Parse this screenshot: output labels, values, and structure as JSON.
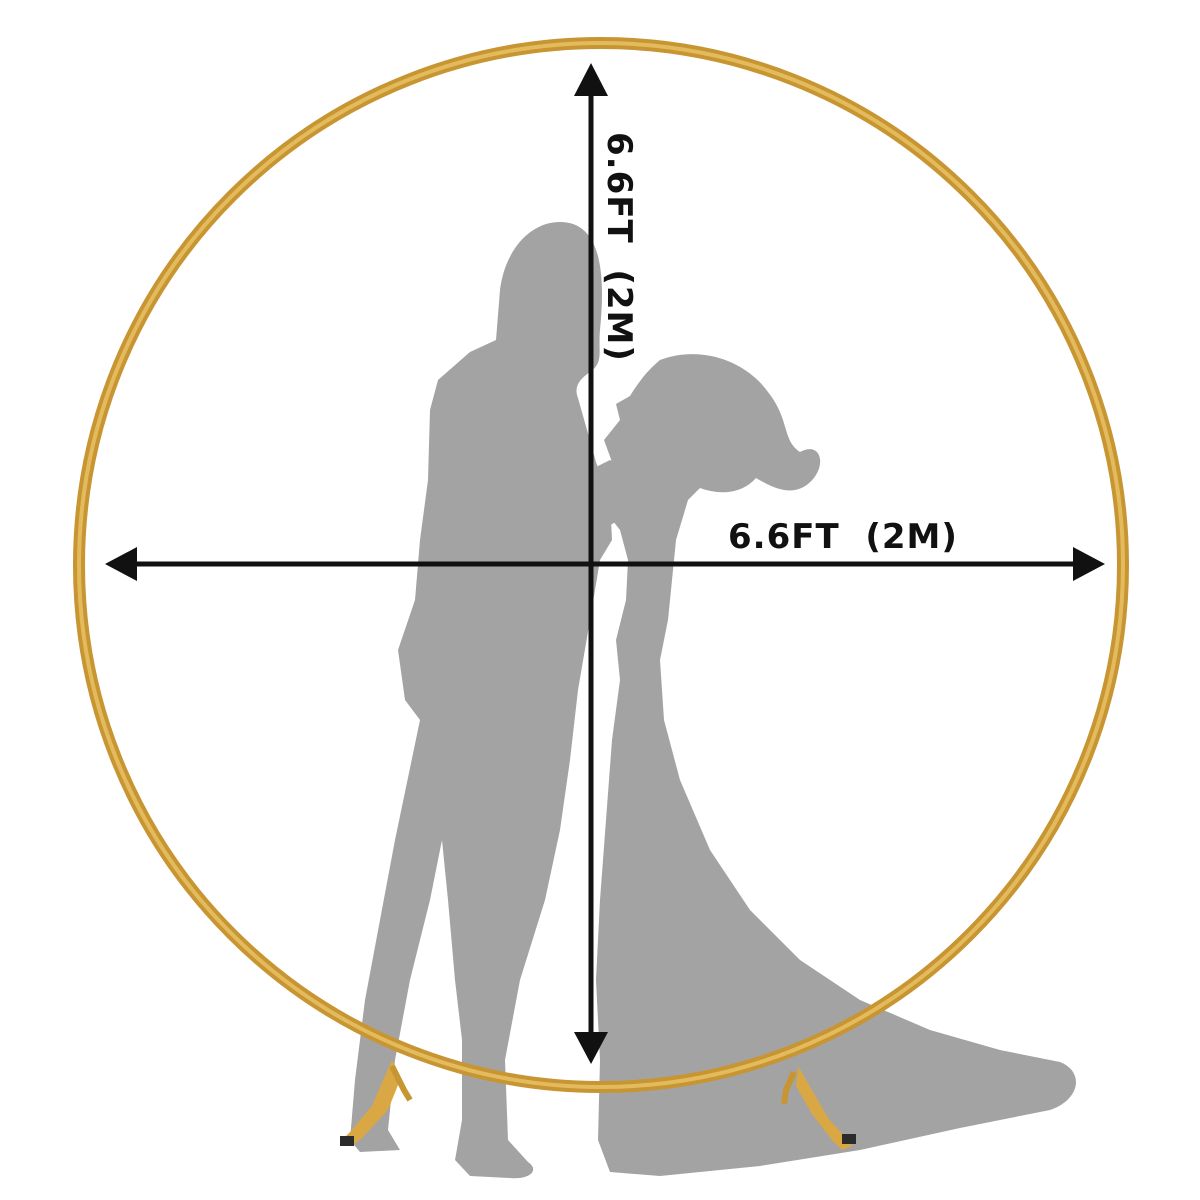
{
  "dimensions": {
    "width_label": "6.6FT  (2M)",
    "height_label": "6.6FT  (2M)"
  },
  "colors": {
    "ring": "#D9A845",
    "ring_highlight": "#EAC468",
    "silhouette": "#A3A3A3",
    "arrow": "#111111",
    "background": "#FFFFFF"
  },
  "illustration": {
    "subject": "couple-silhouette",
    "object": "round-arch-backdrop-stand"
  }
}
